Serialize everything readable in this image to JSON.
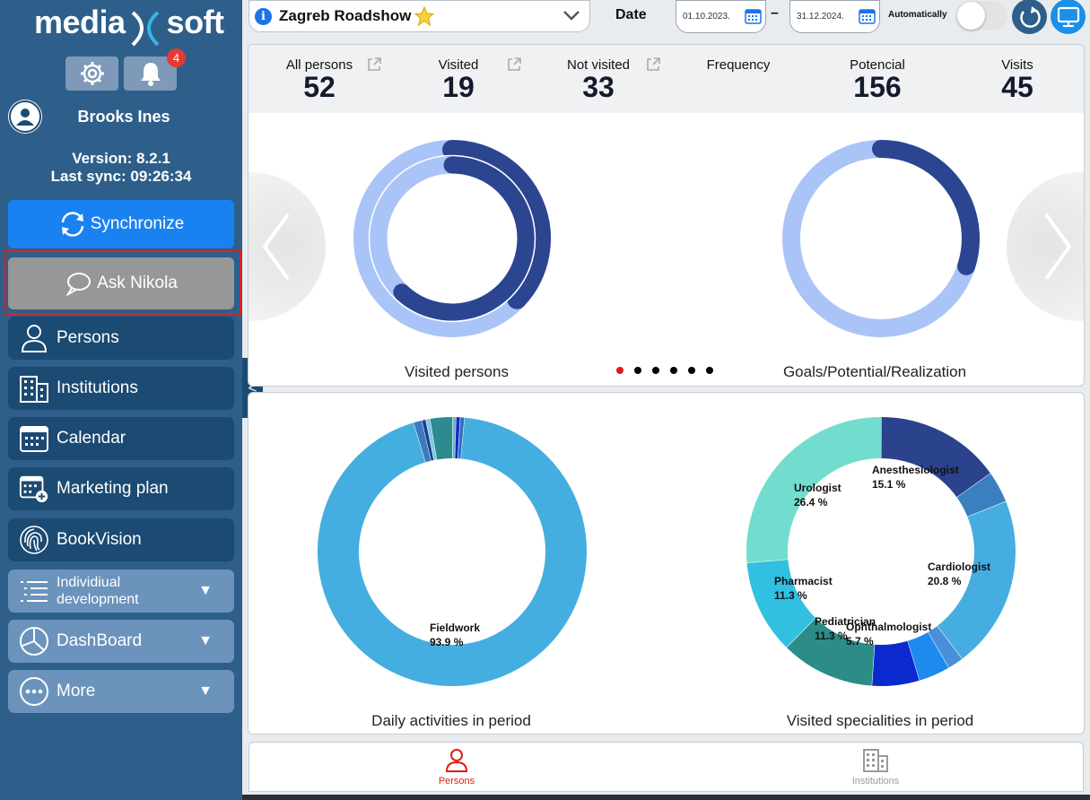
{
  "sidebar": {
    "logo_left": "media",
    "logo_right": "soft",
    "notification_count": "4",
    "user_name": "Brooks Ines",
    "version": "Version: 8.2.1",
    "last_sync": "Last sync: 09:26:34",
    "sync_label": "Synchronize",
    "ask_label": "Ask Nikola",
    "items": [
      {
        "label": "Persons",
        "icon": "person-icon"
      },
      {
        "label": "Institutions",
        "icon": "building-icon"
      },
      {
        "label": "Calendar",
        "icon": "calendar-icon"
      },
      {
        "label": "Marketing plan",
        "icon": "calendar-plus-icon"
      },
      {
        "label": "BookVision",
        "icon": "fingerprint-icon"
      },
      {
        "label_line1": "Individiual",
        "label_line2": "development",
        "icon": "list-icon"
      },
      {
        "label": "DashBoard",
        "icon": "pie-icon"
      },
      {
        "label": "More",
        "icon": "more-icon"
      }
    ],
    "collapse_label": "<"
  },
  "topbar": {
    "title": "Zagreb Roadshow",
    "date_label": "Date",
    "date_from": "01.10.2023.",
    "date_to": "31.12.2024.",
    "date_separator": "–",
    "auto_label": "Automatically"
  },
  "stats": [
    {
      "label": "All persons",
      "value": "52"
    },
    {
      "label": "Visited",
      "value": "19"
    },
    {
      "label": "Not visited",
      "value": "33"
    },
    {
      "label": "Frequency",
      "value": ""
    },
    {
      "label": "Potencial",
      "value": "156"
    },
    {
      "label": "Visits",
      "value": "45"
    }
  ],
  "captions": {
    "visited_persons": "Visited persons",
    "goals": "Goals/Potential/Realization",
    "daily": "Daily activities in period",
    "specialities": "Visited specialities in period"
  },
  "carousel": {
    "pages": 6,
    "active": 0
  },
  "chart_data": [
    {
      "type": "pie",
      "subtype": "donut",
      "title": "Visited persons",
      "rings": [
        {
          "name": "outer",
          "value": 0.37,
          "color": "#2b4590",
          "track": "#abc4f7"
        },
        {
          "name": "inner",
          "value": 0.62,
          "color": "#2b4590",
          "track": "#abc4f7"
        }
      ]
    },
    {
      "type": "pie",
      "subtype": "donut",
      "title": "Goals/Potential/Realization",
      "rings": [
        {
          "name": "realization",
          "value": 0.3,
          "color": "#2b4590",
          "track": "#abc4f7"
        }
      ]
    },
    {
      "type": "pie",
      "subtype": "donut",
      "title": "Daily activities in period",
      "slices": [
        {
          "label": "Fieldwork",
          "value": 93.9,
          "color": "#45aee0"
        },
        {
          "label": "",
          "value": 1.0,
          "color": "#3a7ac0"
        },
        {
          "label": "",
          "value": 0.5,
          "color": "#1d3f8a"
        },
        {
          "label": "",
          "value": 0.5,
          "color": "#7fc7e6"
        },
        {
          "label": "",
          "value": 2.7,
          "color": "#2d8a8e"
        },
        {
          "label": "",
          "value": 0.4,
          "color": "#63b8c9"
        },
        {
          "label": "",
          "value": 0.5,
          "color": "#1428c8"
        },
        {
          "label": "",
          "value": 0.5,
          "color": "#2f6fc0"
        }
      ],
      "labeled": [
        {
          "label": "Fieldwork",
          "pct": "93.9 %"
        }
      ]
    },
    {
      "type": "pie",
      "subtype": "donut",
      "title": "Visited specialities in period",
      "slices": [
        {
          "label": "Anesthesiologist",
          "value": 15.1,
          "color": "#2b428c"
        },
        {
          "label": "",
          "value": 3.8,
          "color": "#3a7fbf"
        },
        {
          "label": "Cardiologist",
          "value": 20.8,
          "color": "#45ade0"
        },
        {
          "label": "",
          "value": 1.9,
          "color": "#4b8fd8"
        },
        {
          "label": "",
          "value": 3.8,
          "color": "#1e8af0"
        },
        {
          "label": "Ophthalmologist",
          "value": 5.7,
          "color": "#0a2ad0"
        },
        {
          "label": "Pediatrician",
          "value": 11.3,
          "color": "#2b8c88"
        },
        {
          "label": "Pharmacist",
          "value": 11.3,
          "color": "#31c0e0"
        },
        {
          "label": "Urologist",
          "value": 26.4,
          "color": "#72ddcf"
        }
      ],
      "labeled": [
        {
          "label": "Anesthesiologist",
          "pct": "15.1 %"
        },
        {
          "label": "Urologist",
          "pct": "26.4 %"
        },
        {
          "label": "Cardiologist",
          "pct": "20.8 %"
        },
        {
          "label": "Pharmacist",
          "pct": "11.3 %"
        },
        {
          "label": "Pediatrician",
          "pct": "11.3 %"
        },
        {
          "label": "Ophthalmologist",
          "pct": "5.7 %"
        }
      ]
    }
  ],
  "bottom_tabs": [
    {
      "label": "Persons",
      "active": true,
      "color": "#e21a1a"
    },
    {
      "label": "Institutions",
      "active": false,
      "color": "#9a9a9a"
    }
  ]
}
